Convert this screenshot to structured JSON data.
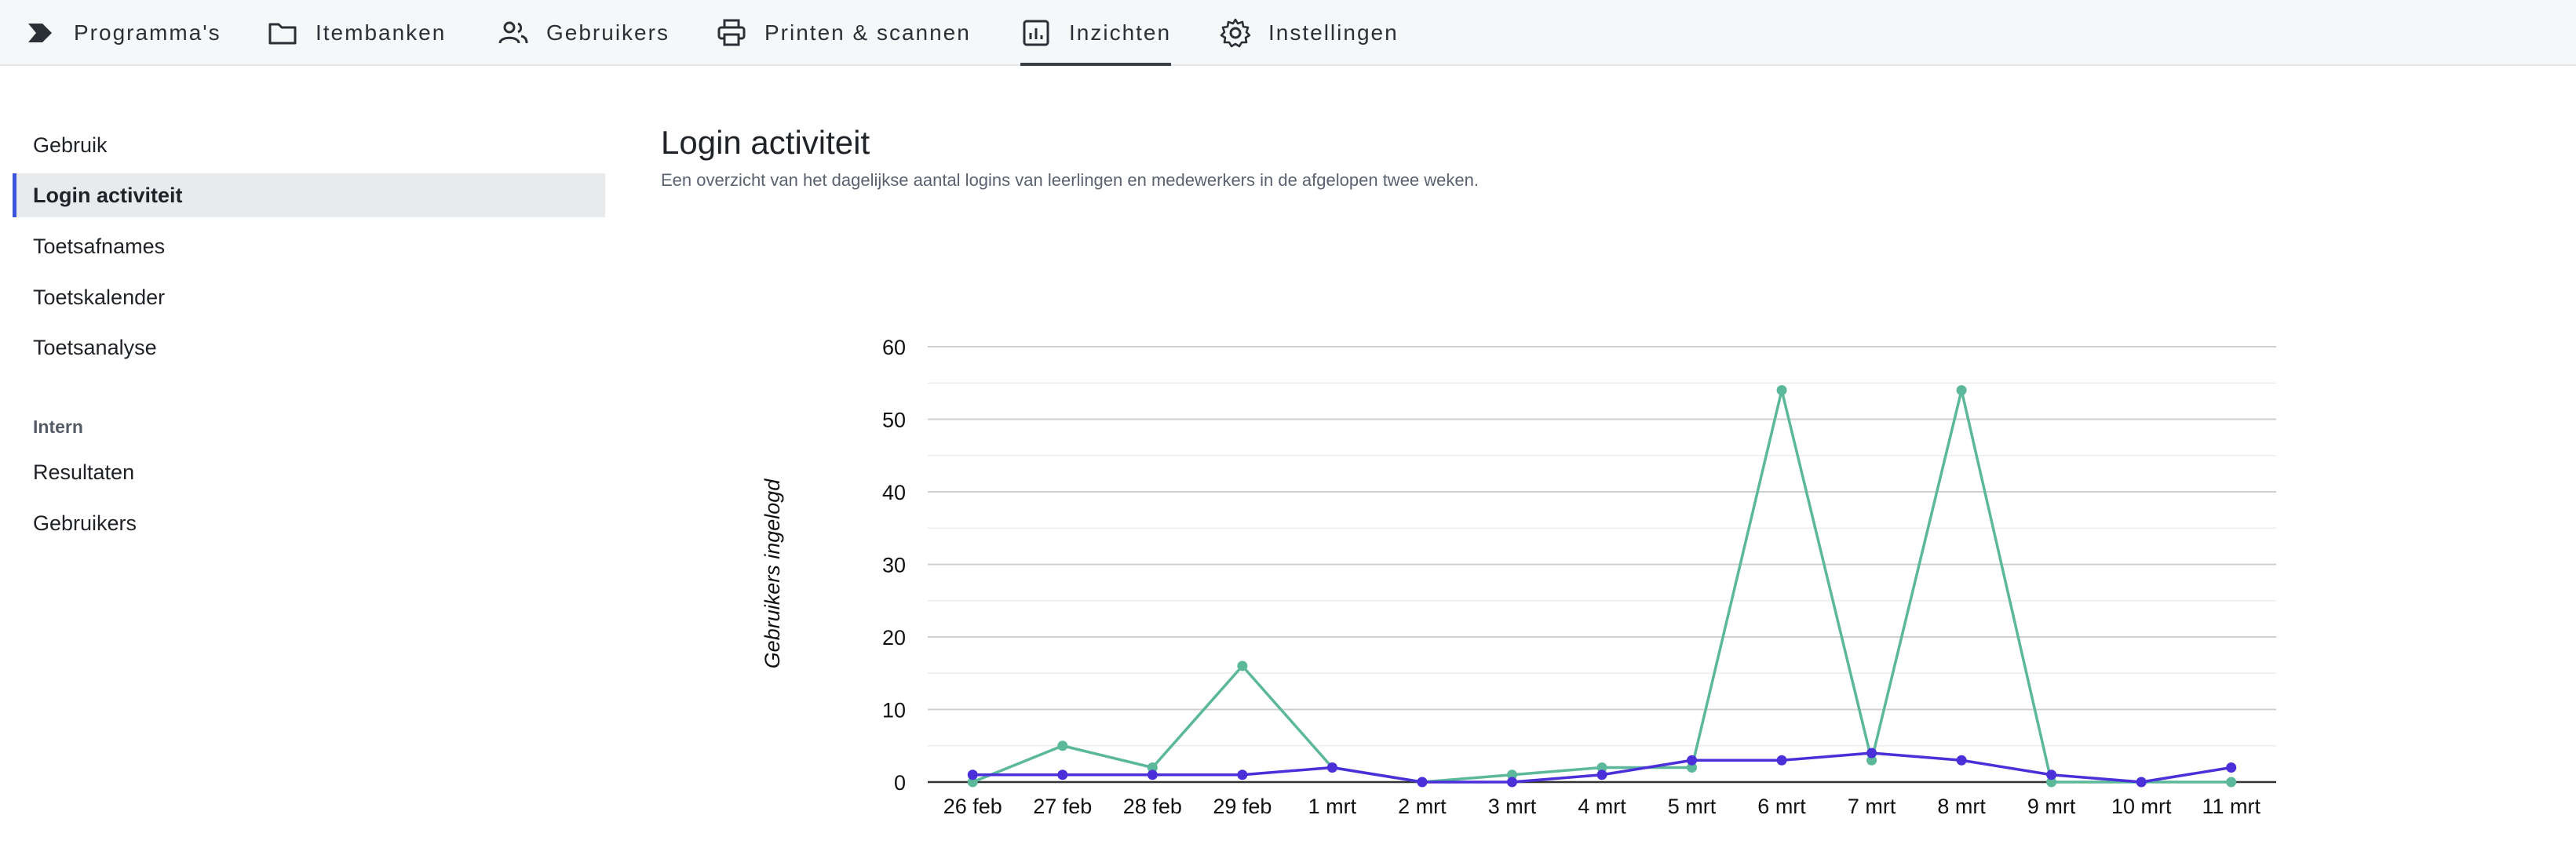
{
  "nav": {
    "items": [
      {
        "label": "Programma's",
        "icon": "chevron-tag-icon"
      },
      {
        "label": "Itembanken",
        "icon": "folder-icon"
      },
      {
        "label": "Gebruikers",
        "icon": "users-icon"
      },
      {
        "label": "Printen & scannen",
        "icon": "printer-icon"
      },
      {
        "label": "Inzichten",
        "icon": "bar-chart-icon",
        "active": true
      },
      {
        "label": "Instellingen",
        "icon": "gear-icon"
      }
    ]
  },
  "sidebar": {
    "items": [
      {
        "label": "Gebruik"
      },
      {
        "label": "Login activiteit",
        "active": true
      },
      {
        "label": "Toetsafnames"
      },
      {
        "label": "Toetskalender"
      },
      {
        "label": "Toetsanalyse"
      }
    ],
    "section_heading": "Intern",
    "section_items": [
      {
        "label": "Resultaten"
      },
      {
        "label": "Gebruikers"
      }
    ]
  },
  "main": {
    "title": "Login activiteit",
    "description": "Een overzicht van het dagelijkse aantal logins van leerlingen en medewerkers in de afgelopen twee weken."
  },
  "colors": {
    "series_green": "#5bb89a",
    "series_purple": "#4b2fd9",
    "active_accent": "#3b54d9"
  },
  "chart_data": {
    "type": "line",
    "ylabel": "Gebruikers ingelogd",
    "ylim": [
      0,
      60
    ],
    "yticks": [
      0,
      10,
      20,
      30,
      40,
      50,
      60
    ],
    "grid": true,
    "categories": [
      "26 feb",
      "27 feb",
      "28 feb",
      "29 feb",
      "1 mrt",
      "2 mrt",
      "3 mrt",
      "4 mrt",
      "5 mrt",
      "6 mrt",
      "7 mrt",
      "8 mrt",
      "9 mrt",
      "10 mrt",
      "11 mrt"
    ],
    "series": [
      {
        "color": "#5bb89a",
        "values": [
          0,
          5,
          2,
          16,
          2,
          0,
          1,
          2,
          2,
          54,
          3,
          54,
          0,
          0,
          0
        ]
      },
      {
        "color": "#4b2fd9",
        "values": [
          1,
          1,
          1,
          1,
          2,
          0,
          0,
          1,
          3,
          3,
          4,
          3,
          1,
          0,
          2
        ]
      }
    ]
  }
}
